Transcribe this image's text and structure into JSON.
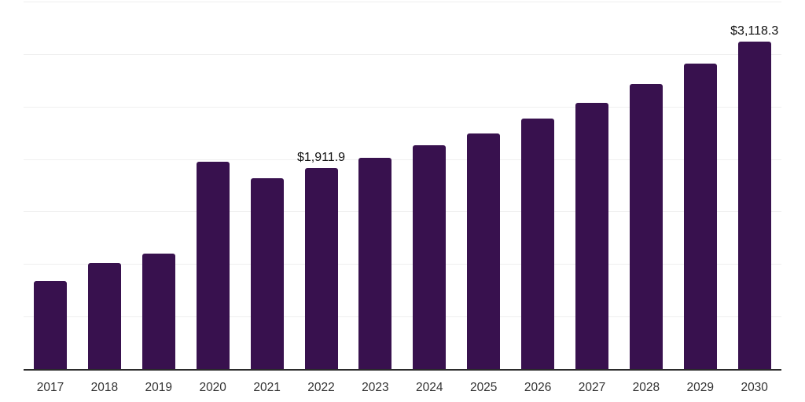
{
  "chart_data": {
    "type": "bar",
    "title": "",
    "xlabel": "",
    "ylabel": "",
    "legend_position": "none",
    "grid": true,
    "ylim": [
      0,
      3500
    ],
    "gridline_step": 500,
    "categories": [
      "2017",
      "2018",
      "2019",
      "2020",
      "2021",
      "2022",
      "2023",
      "2024",
      "2025",
      "2026",
      "2027",
      "2028",
      "2029",
      "2030"
    ],
    "values": [
      840,
      1008,
      1098,
      1977,
      1818,
      1911.9,
      2013,
      2128,
      2247,
      2386,
      2538,
      2714,
      2906,
      3118.3
    ],
    "data_labels": {
      "2022": "$1,911.9",
      "2030": "$3,118.3"
    },
    "colors": {
      "bar_fill": "#38114e",
      "axis_line": "#2b2b2b",
      "gridline": "#efefef",
      "data_label_text": "#111111",
      "tick_label_text": "#333333",
      "background": "#ffffff"
    }
  }
}
